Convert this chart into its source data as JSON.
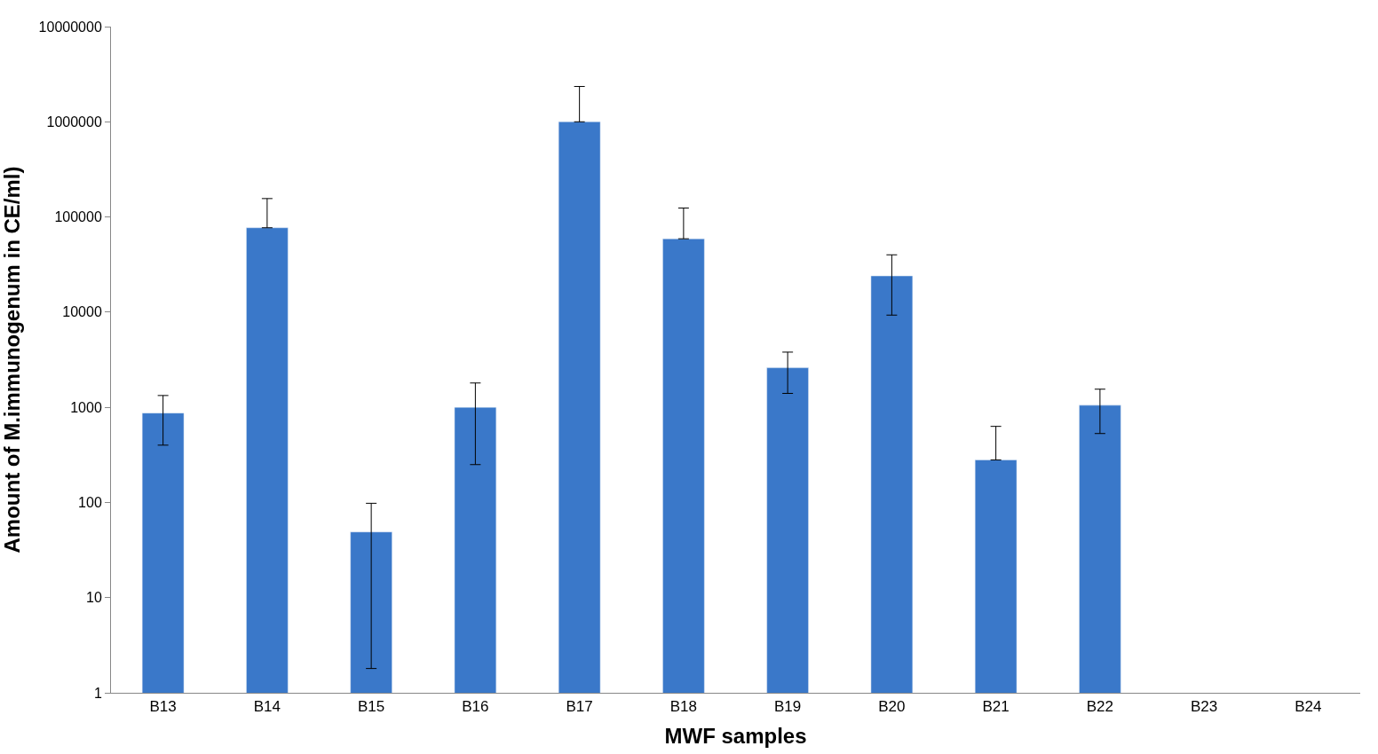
{
  "chart_data": {
    "type": "bar",
    "xlabel": "MWF samples",
    "ylabel": "Amount of M.immunogenum in CE/ml)",
    "categories": [
      "B13",
      "B14",
      "B15",
      "B16",
      "B17",
      "B18",
      "B19",
      "B20",
      "B21",
      "B22",
      "B23",
      "B24"
    ],
    "values": [
      870,
      77000,
      49,
      1000,
      1000000,
      59000,
      2600,
      24000,
      280,
      1050,
      null,
      null
    ],
    "errors": [
      [
        400,
        1330
      ],
      [
        77000,
        156000
      ],
      [
        1.8,
        98
      ],
      [
        250,
        1800
      ],
      [
        1000000,
        2350000
      ],
      [
        59000,
        124000
      ],
      [
        1400,
        3800
      ],
      [
        9300,
        40000
      ],
      [
        280,
        630
      ],
      [
        530,
        1550
      ],
      null,
      null
    ],
    "color": "#3a78c9",
    "log": true,
    "ylim": [
      1,
      10000000
    ],
    "yticks": [
      1,
      10,
      100,
      1000,
      10000,
      100000,
      1000000,
      10000000
    ],
    "legend": false
  }
}
